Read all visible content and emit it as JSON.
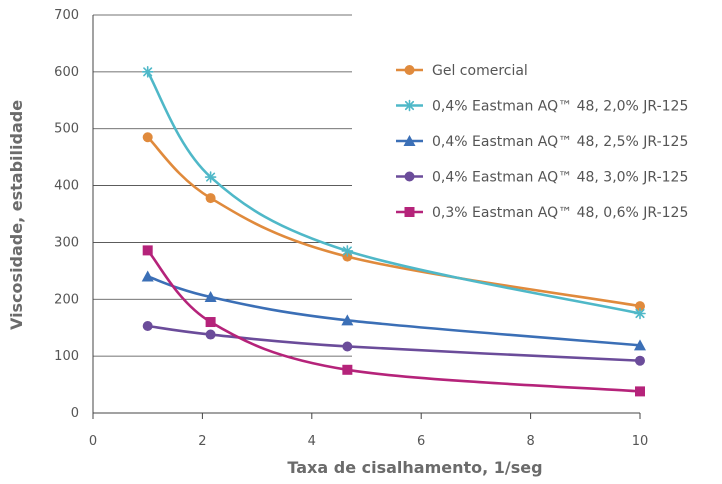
{
  "chart_data": {
    "type": "line",
    "xlabel": "Taxa de cisalhamento, 1/seg",
    "ylabel": "Viscosidade, estabilidade",
    "xlim": [
      0,
      10
    ],
    "ylim": [
      0,
      700
    ],
    "xticks": [
      0,
      2,
      4,
      6,
      8,
      10
    ],
    "yticks": [
      0,
      100,
      200,
      300,
      400,
      500,
      600,
      700
    ],
    "grid": "horizontal",
    "legend_position": "right",
    "series": [
      {
        "name": "Gel comercial",
        "color": "#e08a3c",
        "marker": "circle",
        "x": [
          1.0,
          2.15,
          4.65,
          10.0
        ],
        "y": [
          485,
          378,
          275,
          188
        ]
      },
      {
        "name": "0,4% Eastman AQ™ 48, 2,0% JR-125",
        "color": "#4fb8c8",
        "marker": "star",
        "x": [
          1.0,
          2.15,
          4.65,
          10.0
        ],
        "y": [
          600,
          415,
          285,
          175
        ]
      },
      {
        "name": "0,4% Eastman AQ™ 48, 2,5% JR-125",
        "color": "#3b6fb6",
        "marker": "triangle",
        "x": [
          1.0,
          2.15,
          4.65,
          10.0
        ],
        "y": [
          240,
          204,
          163,
          119
        ]
      },
      {
        "name": "0,4% Eastman AQ™ 48, 3,0% JR-125",
        "color": "#6b4c9a",
        "marker": "circle",
        "x": [
          1.0,
          2.15,
          4.65,
          10.0
        ],
        "y": [
          153,
          138,
          117,
          92
        ]
      },
      {
        "name": "0,3% Eastman AQ™ 48, 0,6% JR-125",
        "color": "#b5237a",
        "marker": "square",
        "x": [
          1.0,
          2.15,
          4.65,
          10.0
        ],
        "y": [
          286,
          160,
          76,
          38
        ]
      }
    ]
  }
}
